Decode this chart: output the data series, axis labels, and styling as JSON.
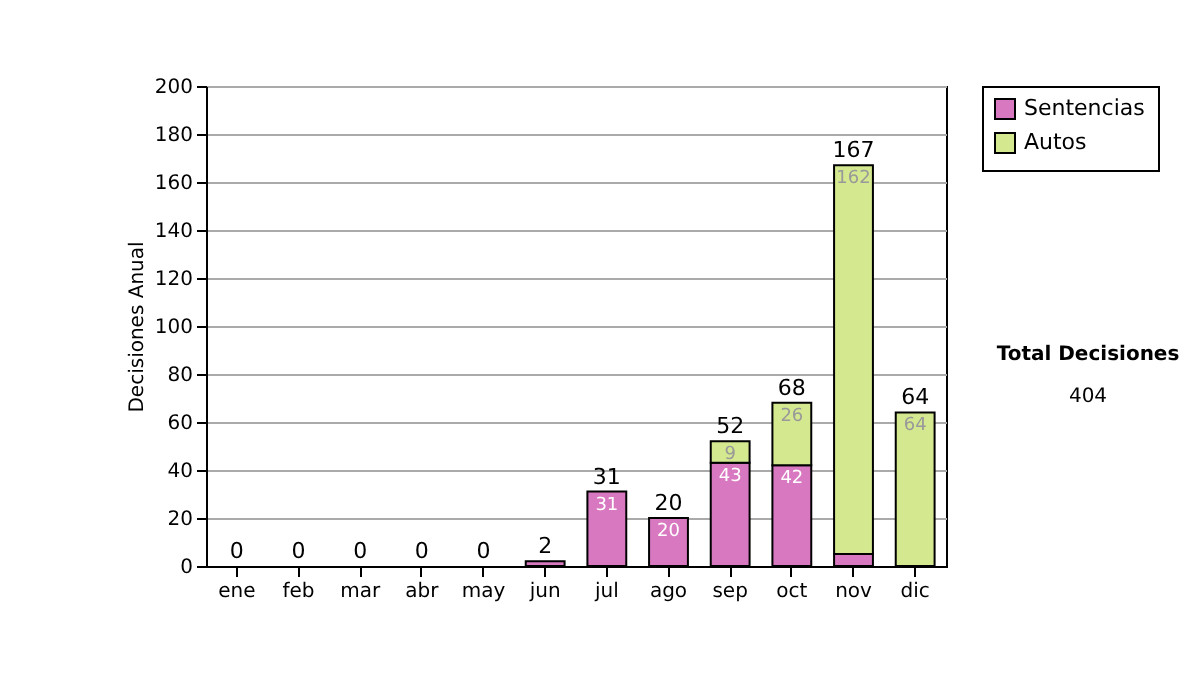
{
  "chart_data": {
    "type": "bar",
    "ylabel": "Decisiones Anual",
    "stacked": true,
    "categories": [
      "ene",
      "feb",
      "mar",
      "abr",
      "may",
      "jun",
      "jul",
      "ago",
      "sep",
      "oct",
      "nov",
      "dic"
    ],
    "series": [
      {
        "name": "Sentencias",
        "color": "#d878c0",
        "values": [
          0,
          0,
          0,
          0,
          0,
          2,
          31,
          20,
          43,
          42,
          5,
          0
        ],
        "value_labels": [
          null,
          null,
          null,
          null,
          null,
          null,
          "31",
          "20",
          "43",
          "42",
          null,
          null
        ]
      },
      {
        "name": "Autos",
        "color": "#d4e890",
        "values": [
          0,
          0,
          0,
          0,
          0,
          0,
          0,
          0,
          9,
          26,
          162,
          64
        ],
        "value_labels": [
          null,
          null,
          null,
          null,
          null,
          null,
          null,
          null,
          "9",
          "26",
          "162",
          "64"
        ]
      }
    ],
    "totals": [
      "0",
      "0",
      "0",
      "0",
      "0",
      "2",
      "31",
      "20",
      "52",
      "68",
      "167",
      "64"
    ],
    "ylim": [
      0,
      200
    ],
    "yticks": [
      0,
      20,
      40,
      60,
      80,
      100,
      120,
      140,
      160,
      180,
      200
    ],
    "grid": "y",
    "legend": "right",
    "annotations": [
      "Total Decisiones",
      "404"
    ]
  }
}
